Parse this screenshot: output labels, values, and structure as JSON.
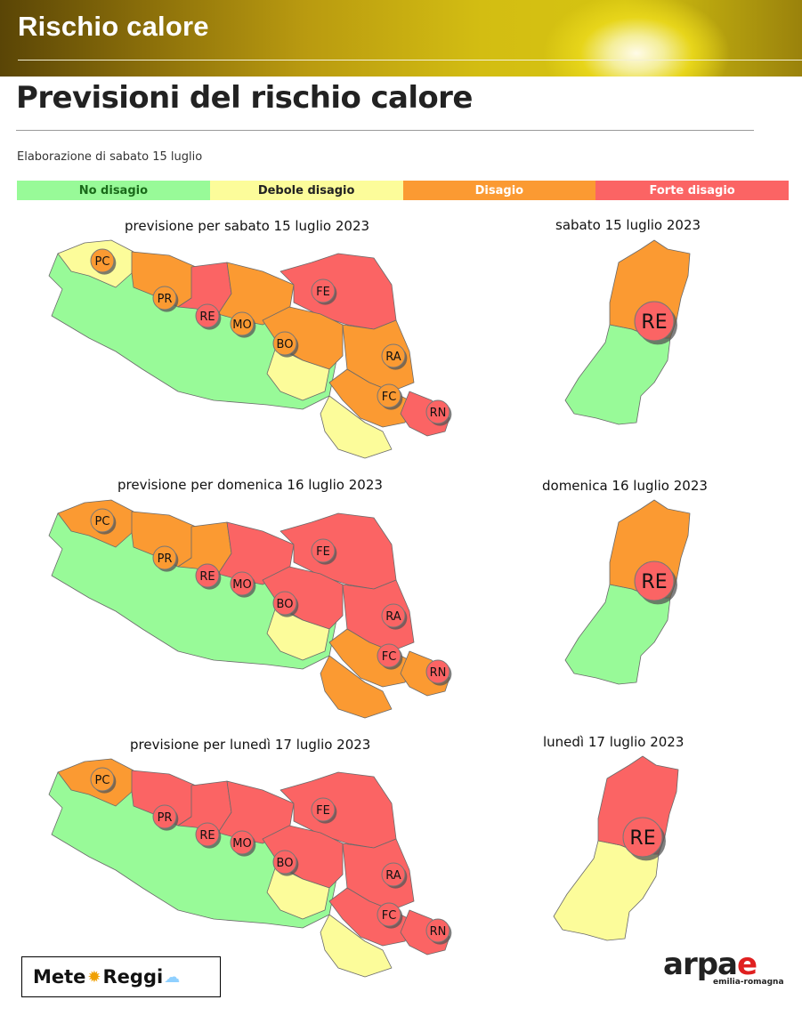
{
  "header": {
    "banner_title": "Rischio calore"
  },
  "page": {
    "title": "Previsioni del rischio calore",
    "elaboration": "Elaborazione di sabato 15 luglio"
  },
  "colors": {
    "no_disagio": "#98fa98",
    "debole": "#fcfc9a",
    "disagio": "#fb9a32",
    "forte": "#fb6464"
  },
  "legend": [
    {
      "label": "No disagio",
      "color": "#98fa98",
      "text_color": "#1a6a1a"
    },
    {
      "label": "Debole disagio",
      "color": "#fcfc9a",
      "text_color": "#222222"
    },
    {
      "label": "Disagio",
      "color": "#fb9a32",
      "text_color": "#ffffff"
    },
    {
      "label": "Forte disagio",
      "color": "#fb6464",
      "text_color": "#ffffff"
    }
  ],
  "days": [
    {
      "region_caption": "previsione per sabato 15 luglio 2023",
      "province_caption": "sabato 15 luglio 2023",
      "province_label": "RE",
      "province_levels": {
        "north": "disagio",
        "south": "no_disagio"
      },
      "labels": [
        "PC",
        "PR",
        "RE",
        "MO",
        "BO",
        "FE",
        "RA",
        "FC",
        "RN"
      ],
      "levels": {
        "PC": "disagio",
        "PR": "disagio",
        "RE": "forte",
        "MO": "disagio",
        "BO": "disagio",
        "FE": "forte",
        "RA": "disagio",
        "FC": "disagio",
        "RN": "forte"
      },
      "zones": {
        "pc": "debole",
        "pr_n": "disagio",
        "re_n": "forte",
        "mo_n": "disagio",
        "bo_n": "disagio",
        "fe": "forte",
        "ra": "disagio",
        "fc_n": "disagio",
        "fc_s": "debole",
        "rn": "forte",
        "app": "no_disagio",
        "bo_s": "debole"
      }
    },
    {
      "region_caption": "previsione per domenica 16 luglio 2023",
      "province_caption": "domenica 16 luglio 2023",
      "province_label": "RE",
      "province_levels": {
        "north": "disagio",
        "south": "no_disagio"
      },
      "labels": [
        "PC",
        "PR",
        "RE",
        "MO",
        "BO",
        "FE",
        "RA",
        "FC",
        "RN"
      ],
      "levels": {
        "PC": "disagio",
        "PR": "disagio",
        "RE": "forte",
        "MO": "forte",
        "BO": "forte",
        "FE": "forte",
        "RA": "forte",
        "FC": "forte",
        "RN": "forte"
      },
      "zones": {
        "pc": "disagio",
        "pr_n": "disagio",
        "re_n": "disagio",
        "mo_n": "forte",
        "bo_n": "forte",
        "fe": "forte",
        "ra": "forte",
        "fc_n": "disagio",
        "fc_s": "disagio",
        "rn": "disagio",
        "app": "no_disagio",
        "bo_s": "debole"
      }
    },
    {
      "region_caption": "previsione per lunedì 17 luglio 2023",
      "province_caption": "lunedì 17 luglio 2023",
      "province_label": "RE",
      "province_levels": {
        "north": "forte",
        "south": "debole"
      },
      "labels": [
        "PC",
        "PR",
        "RE",
        "MO",
        "BO",
        "FE",
        "RA",
        "FC",
        "RN"
      ],
      "levels": {
        "PC": "disagio",
        "PR": "forte",
        "RE": "forte",
        "MO": "forte",
        "BO": "forte",
        "FE": "forte",
        "RA": "forte",
        "FC": "forte",
        "RN": "forte"
      },
      "zones": {
        "pc": "disagio",
        "pr_n": "forte",
        "re_n": "forte",
        "mo_n": "forte",
        "bo_n": "forte",
        "fe": "forte",
        "ra": "forte",
        "fc_n": "forte",
        "fc_s": "debole",
        "rn": "forte",
        "app": "no_disagio",
        "bo_s": "debole"
      }
    }
  ],
  "logos": {
    "meteo_left": "Mete",
    "meteo_right": "Reggi",
    "arpae_main": "arpa",
    "arpae_e": "e",
    "arpae_sub": "emilia-romagna"
  }
}
